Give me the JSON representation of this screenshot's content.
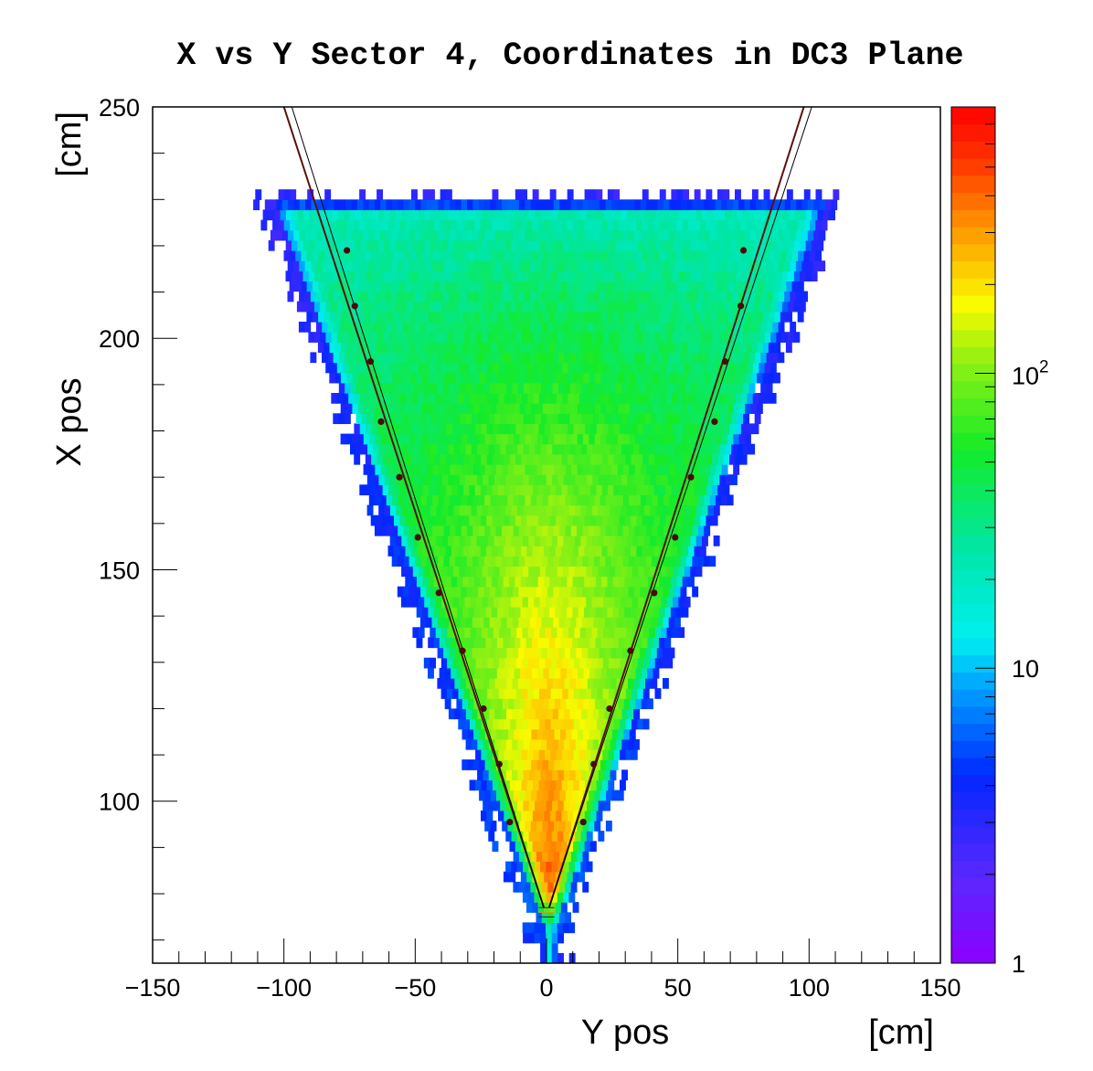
{
  "chart_data": {
    "type": "heatmap",
    "title": "X vs Y Sector 4, Coordinates in DC3 Plane",
    "xlabel": "Y pos",
    "xunit": "[cm]",
    "ylabel": "X pos",
    "yunit": "[cm]",
    "xlim": [
      -150,
      150
    ],
    "ylim": [
      65,
      250
    ],
    "x_ticks": [
      -150,
      -100,
      -50,
      0,
      50,
      100,
      150
    ],
    "y_ticks": [
      100,
      150,
      200,
      250
    ],
    "y_tick_labels": [
      "100",
      "150",
      "200",
      "250"
    ],
    "x_tick_labels": [
      "−150",
      "−100",
      "−50",
      "0",
      "50",
      "100",
      "150"
    ],
    "z_scale": "log",
    "zlim": [
      1,
      800
    ],
    "z_ticks": [
      {
        "value": 1,
        "label": "1"
      },
      {
        "value": 10,
        "label": "10"
      },
      {
        "value": 100,
        "base": "10",
        "exp": "2"
      }
    ],
    "grid": false,
    "legend": "none",
    "distribution": {
      "apex": [
        0,
        68
      ],
      "top_x": 228,
      "top_halfwidth": 105,
      "peak_region_x": [
        80,
        115
      ]
    },
    "fit_lines_left": [
      {
        "x": [
          -1,
          -100
        ],
        "y": [
          77,
          250
        ]
      },
      {
        "x": [
          -1,
          -97
        ],
        "y": [
          77,
          250
        ]
      }
    ],
    "fit_lines_right": [
      {
        "x": [
          1,
          98
        ],
        "y": [
          77,
          250
        ]
      },
      {
        "x": [
          1,
          101
        ],
        "y": [
          77,
          250
        ]
      }
    ],
    "points_left": [
      {
        "x": -76,
        "y": 219
      },
      {
        "x": -73,
        "y": 207
      },
      {
        "x": -67,
        "y": 195
      },
      {
        "x": -63,
        "y": 182
      },
      {
        "x": -56,
        "y": 170
      },
      {
        "x": -49,
        "y": 157
      },
      {
        "x": -41,
        "y": 145
      },
      {
        "x": -32,
        "y": 132.5
      },
      {
        "x": -24,
        "y": 120
      },
      {
        "x": -18,
        "y": 108
      },
      {
        "x": -14,
        "y": 95.5
      }
    ],
    "points_right": [
      {
        "x": 75,
        "y": 219
      },
      {
        "x": 74,
        "y": 207
      },
      {
        "x": 68,
        "y": 195
      },
      {
        "x": 64,
        "y": 182
      },
      {
        "x": 55,
        "y": 170
      },
      {
        "x": 49,
        "y": 157
      },
      {
        "x": 41,
        "y": 145
      },
      {
        "x": 32,
        "y": 132.5
      },
      {
        "x": 24,
        "y": 120
      },
      {
        "x": 18,
        "y": 108
      },
      {
        "x": 14,
        "y": 95.5
      }
    ],
    "colors": {
      "point": "#4a0a0a",
      "fit_line_dark": "#5a1010",
      "fit_line_thin": "#000000"
    }
  }
}
